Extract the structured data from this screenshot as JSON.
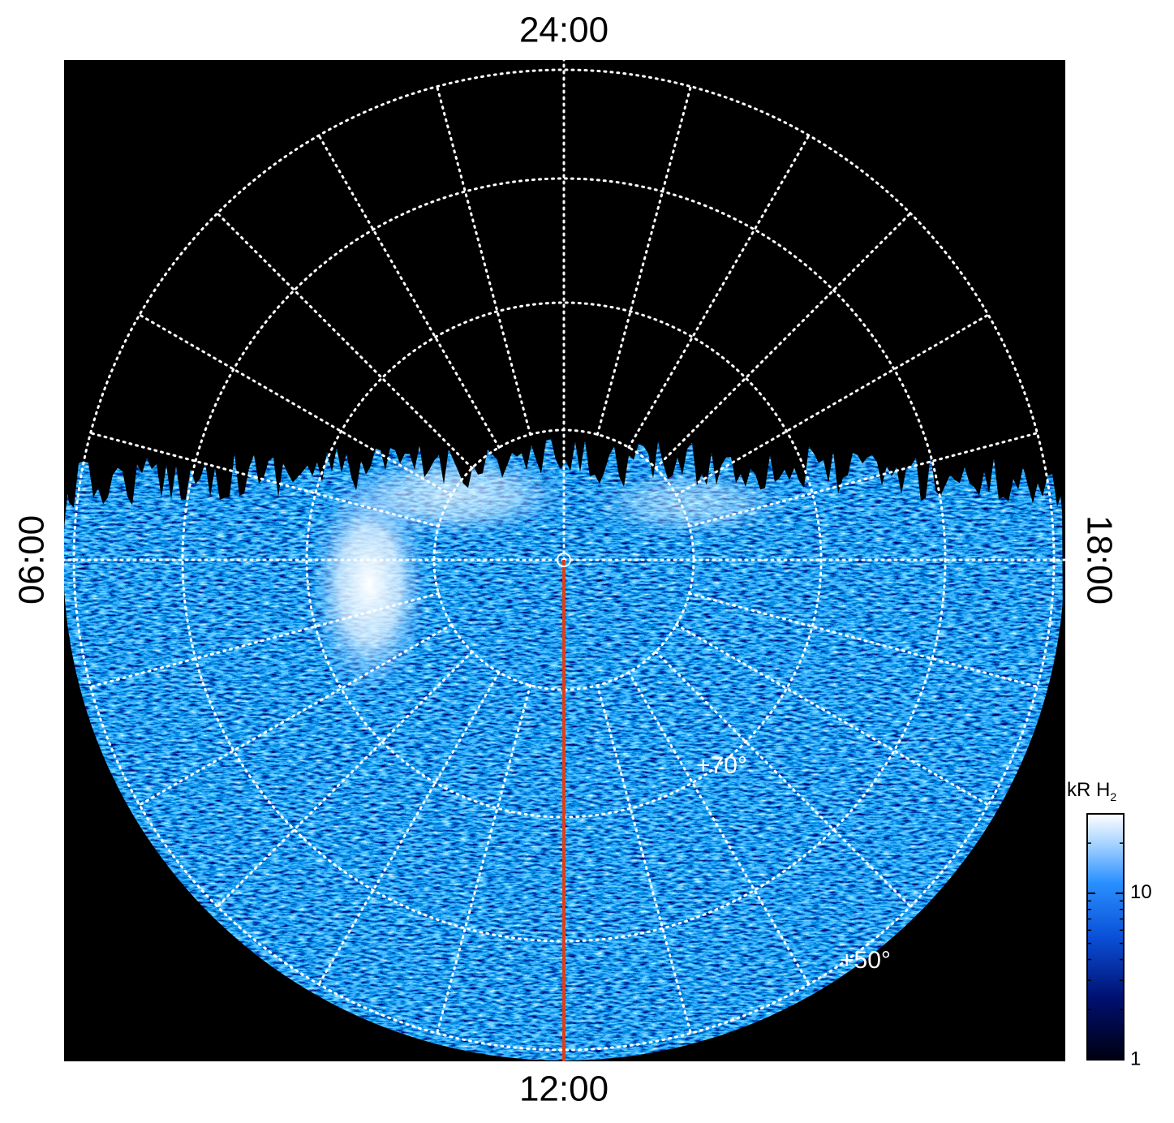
{
  "chart_data": {
    "type": "polar_image",
    "labels": {
      "top": "24:00",
      "bottom": "12:00",
      "left": "06:00",
      "right": "18:00"
    },
    "annotations": [
      "+70°",
      "+50°"
    ],
    "colorbar": {
      "title": "kR H",
      "title_sub": "2",
      "clim": [
        1,
        30
      ],
      "ticks": [
        1,
        10
      ],
      "log": true
    }
  }
}
